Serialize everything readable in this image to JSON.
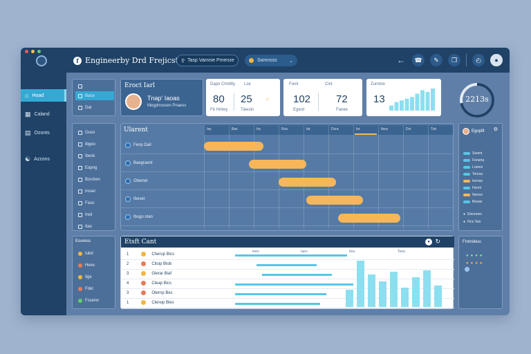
{
  "titlebar": {
    "project": "Engineerby Drd Frejicst",
    "search": "Tasp Vamnie Pmenze",
    "status": "Samnsss"
  },
  "sidebar": {
    "items": [
      {
        "label": "Hoad",
        "icon": "home-icon",
        "active": true
      },
      {
        "label": "Caland",
        "icon": "calendar-icon",
        "active": false
      },
      {
        "label": "Ozonts",
        "icon": "chart-icon",
        "active": false
      },
      {
        "label": "Azzons",
        "icon": "team-icon",
        "active": false
      }
    ]
  },
  "subnav_top": {
    "items": [
      "Bace",
      "Dat"
    ]
  },
  "subnav_mid": {
    "items": [
      "Ouso",
      "Ibgeo",
      "Ibesk",
      "Eapng",
      "Bsrcben",
      "Iroser",
      "Faso",
      "Ired",
      "Itao"
    ]
  },
  "subnav_bottom": {
    "title": "Eouress",
    "items": [
      "Iubd",
      "Hexe",
      "Ilge",
      "Fdel",
      "Fsserer"
    ]
  },
  "profile_card": {
    "title": "Eroct Iarl",
    "name": "Tnap' Iaoas",
    "role": "Megphoosen Pnaess"
  },
  "stats": [
    {
      "label": "Dapo Chntlity",
      "label2": "Lse",
      "value": "80",
      "value2": "25",
      "sub": "Fb Hritwy",
      "sub2": "Tieesin"
    },
    {
      "label": "Fonit",
      "label2": "Cint",
      "value": "102",
      "value2": "72",
      "sub": "Egerd",
      "sub2": "Fiaree"
    },
    {
      "label": "Zurnbre",
      "value": "13"
    }
  ],
  "stats3_bars": [
    3,
    5,
    6,
    7,
    8,
    10,
    12,
    11,
    13
  ],
  "donut": {
    "value": "2213s",
    "fraction": 0.72
  },
  "gantt": {
    "title": "Ularent",
    "columns": [
      "Iay",
      "Bas",
      "Ira",
      "Rza",
      "Iat",
      "Dzra",
      "Isr",
      "Ibea",
      "Dzr",
      "Tist"
    ],
    "rows": [
      {
        "label": "Fenp Dail",
        "start": 0.0,
        "end": 0.24
      },
      {
        "label": "Baegraent",
        "start": 0.18,
        "end": 0.41
      },
      {
        "label": "Obwnet",
        "start": 0.3,
        "end": 0.53
      },
      {
        "label": "Ibeset",
        "start": 0.41,
        "end": 0.64
      },
      {
        "label": "Ibsgo otan",
        "start": 0.54,
        "end": 0.79
      }
    ]
  },
  "activity": {
    "title": "Egopift",
    "items": [
      "Ssrent",
      "Feranta",
      "Lraees",
      "Tsrnoa",
      "Ieenas",
      "Hsnnt",
      "Itaress",
      "Beeae"
    ],
    "footer": [
      "Eleonees",
      "Flcs Tsio"
    ]
  },
  "table": {
    "title": "Etsft Cant",
    "col_labels": [
      "Ieeo",
      "Iaeo",
      "Iiea",
      "Teea"
    ],
    "rows": [
      {
        "n": "1",
        "name": "Cherup Bics"
      },
      {
        "n": "2",
        "name": "Citsip Blob"
      },
      {
        "n": "3",
        "name": "Glerar Biaf"
      },
      {
        "n": "4",
        "name": "Cleap Bics"
      },
      {
        "n": "3",
        "name": "Oternp Bec"
      },
      {
        "n": "1",
        "name": "Clenop Bles"
      }
    ],
    "bars": [
      0.32,
      0.86,
      0.6,
      0.48,
      0.66,
      0.36,
      0.55,
      0.68,
      0.4
    ],
    "row_bars": [
      [
        0.0,
        0.58
      ],
      [
        0.11,
        0.42
      ],
      [
        0.14,
        0.5
      ],
      [
        0.0,
        0.61
      ],
      [
        0.0,
        0.47
      ],
      [
        0.0,
        0.44
      ]
    ]
  },
  "bottom_right": {
    "title": "Fronsleuu"
  },
  "colors": {
    "accent": "#35a9d4",
    "orange": "#f7b759",
    "cyan": "#8cdff0",
    "navy": "#1f4266"
  }
}
